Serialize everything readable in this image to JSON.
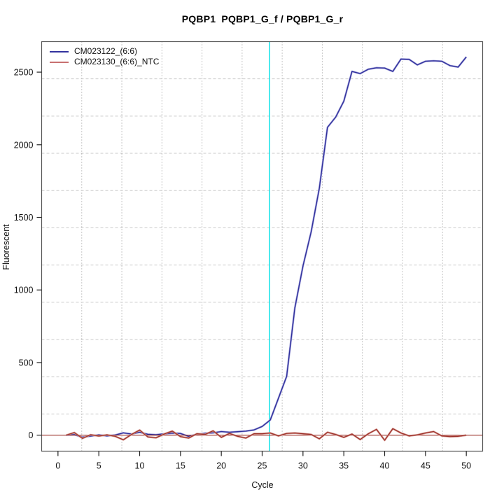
{
  "title": "PQBP1  PQBP1_G_f / PQBP1_G_r",
  "x_axis": {
    "label": "Cycle",
    "ticks": [
      0,
      5,
      10,
      15,
      20,
      25,
      30,
      35,
      40,
      45,
      50
    ]
  },
  "y_axis": {
    "label": "Fluorescent",
    "ticks": [
      0,
      500,
      1000,
      1500,
      2000,
      2500
    ]
  },
  "legend": [
    {
      "label": "CM023122_(6:6)",
      "color": "#32329e"
    },
    {
      "label": "CM023130_(6:6)_NTC",
      "color": "#c87070"
    }
  ],
  "colors": {
    "sample_line": "#2f2f9a",
    "sample_halo": "#9a9ad8",
    "ntc_line": "#9c3029",
    "ntc_halo": "#d4968f",
    "zero_line": "#9c3029",
    "threshold_line": "#00e0e6",
    "grid_horizontal": "#c9c9c9",
    "grid_vertical": "#8f8f8f",
    "box": "#555555",
    "tick": "#222222",
    "tick_label": "#111111"
  },
  "chart_data": {
    "type": "line",
    "title": "PQBP1  PQBP1_G_f / PQBP1_G_r",
    "xlabel": "Cycle",
    "ylabel": "Fluorescent",
    "xlim": [
      -2,
      52
    ],
    "ylim": [
      -110,
      2710
    ],
    "grid": {
      "x_divisions": 11,
      "y_divisions": 11,
      "style": "dotted"
    },
    "legend_position": "top-left",
    "threshold_cycle_line": {
      "x": 25.9,
      "color": "#00e0e6"
    },
    "zero_baseline": {
      "y": 0,
      "color": "#9c3029"
    },
    "x": [
      1,
      2,
      3,
      4,
      5,
      6,
      7,
      8,
      9,
      10,
      11,
      12,
      13,
      14,
      15,
      16,
      17,
      18,
      19,
      20,
      21,
      22,
      23,
      24,
      25,
      26,
      27,
      28,
      29,
      30,
      31,
      32,
      33,
      34,
      35,
      36,
      37,
      38,
      39,
      40,
      41,
      42,
      43,
      44,
      45,
      46,
      47,
      48,
      49,
      50
    ],
    "series": [
      {
        "name": "CM023122_(6:6)",
        "values": [
          0,
          4,
          -14,
          -6,
          2,
          -5,
          1,
          16,
          8,
          20,
          6,
          3,
          9,
          14,
          12,
          -8,
          6,
          13,
          16,
          25,
          20,
          24,
          28,
          36,
          60,
          105,
          255,
          405,
          875,
          1165,
          1400,
          1700,
          2120,
          2190,
          2300,
          2505,
          2490,
          2520,
          2530,
          2528,
          2505,
          2590,
          2588,
          2550,
          2575,
          2578,
          2575,
          2545,
          2535,
          2605
        ]
      },
      {
        "name": "CM023130_(6:6)_NTC",
        "values": [
          0,
          18,
          -22,
          3,
          -6,
          2,
          -8,
          -32,
          5,
          35,
          -12,
          -18,
          8,
          28,
          -10,
          -20,
          10,
          5,
          30,
          -15,
          12,
          -8,
          -20,
          10,
          10,
          15,
          -5,
          12,
          15,
          10,
          5,
          -25,
          20,
          5,
          -15,
          8,
          -30,
          10,
          40,
          -35,
          45,
          15,
          -5,
          2,
          15,
          25,
          -5,
          -10,
          -8,
          0
        ]
      }
    ]
  }
}
